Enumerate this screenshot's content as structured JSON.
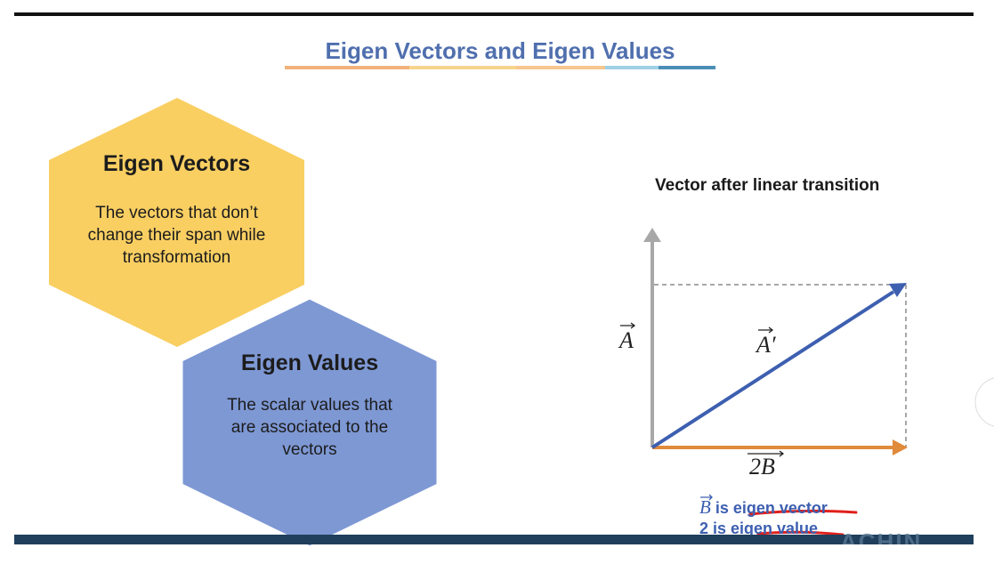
{
  "slide": {
    "title": "Eigen Vectors and Eigen Values"
  },
  "hexagons": {
    "eigen_vectors": {
      "title": "Eigen Vectors",
      "body_lines": [
        "The vectors that don’t",
        "change their span while",
        "transformation"
      ],
      "color": "#f9cf62"
    },
    "eigen_values": {
      "title": "Eigen Values",
      "body_lines": [
        "The scalar values that",
        "are associated to the",
        "vectors"
      ],
      "color": "#7e98d4"
    }
  },
  "diagram": {
    "heading": "Vector after linear transition",
    "labels": {
      "vector_a": "A",
      "vector_a_prime": "A′",
      "vector_2b": "2B"
    },
    "colors": {
      "axis": "#a8a8a8",
      "diagonal": "#3d5fb0",
      "horizontal": "#e08a3c",
      "dashed": "#8a8a8a"
    },
    "captions": {
      "eigen_vector_symbol": "B",
      "eigen_vector_text": " is eigen vector",
      "eigen_value_text": "2 is eigen value"
    },
    "underline_color": "#e0201c"
  },
  "footer": {
    "bar_color": "#1f3f5c",
    "watermark": "ACHIN"
  }
}
